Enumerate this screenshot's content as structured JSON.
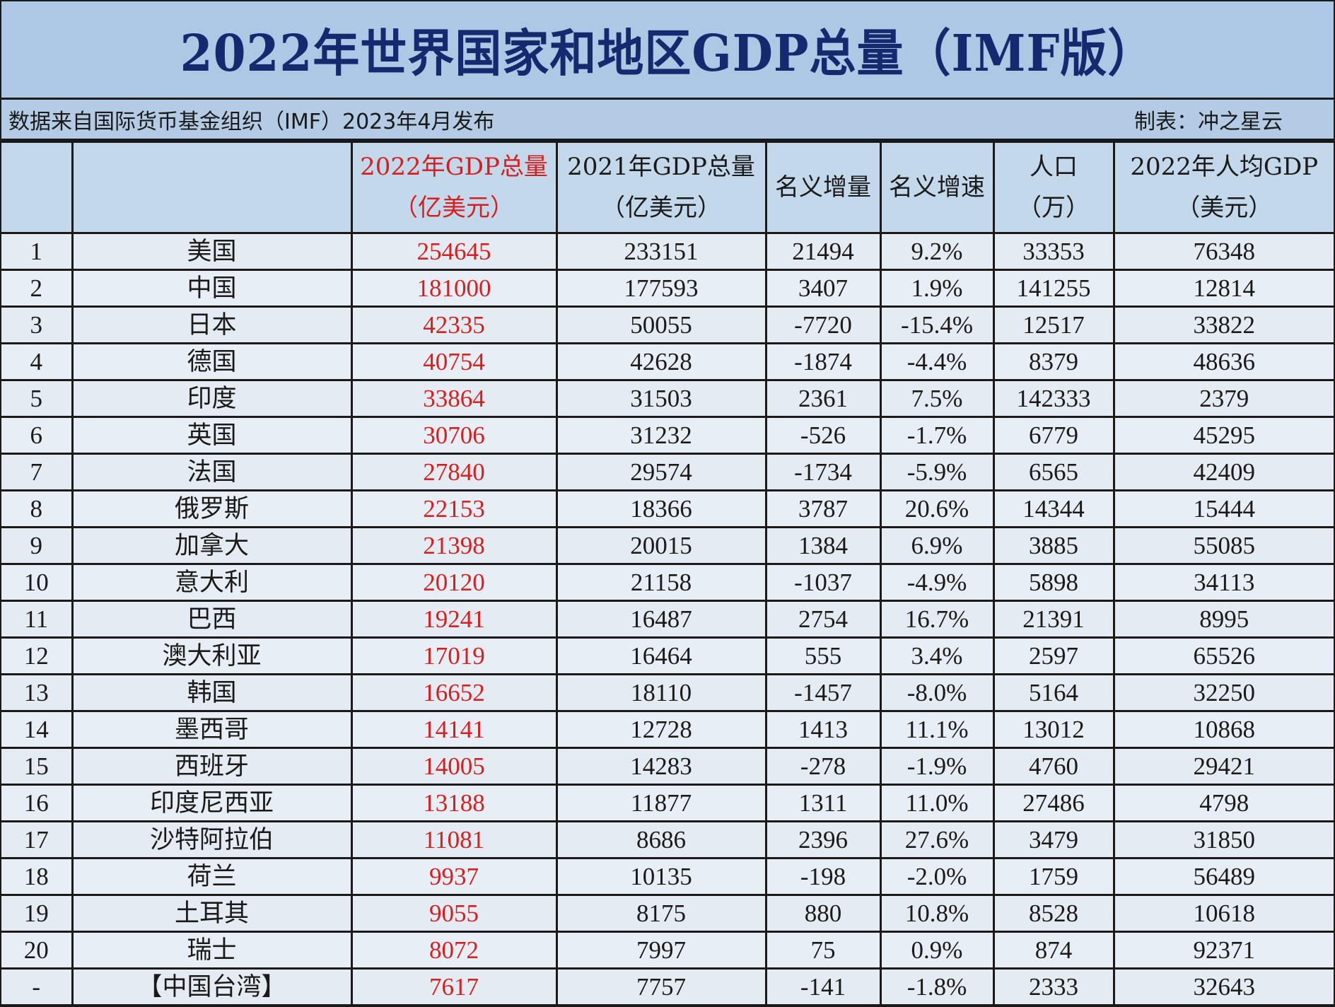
{
  "title": "2022年世界国家和地区GDP总量（IMF版）",
  "subtitle": {
    "source": "数据来自国际货币基金组织（IMF）2023年4月发布",
    "author": "制表：冲之星云"
  },
  "colors": {
    "title_text": "#152a6e",
    "title_bg": "#adc8e4",
    "header_bg": "#c4d8eb",
    "row_bg": "#e4ebf3",
    "highlight_red": "#d42020"
  },
  "headers": [
    {
      "line1": "",
      "line2": ""
    },
    {
      "line1": "",
      "line2": ""
    },
    {
      "line1": "2022年GDP总量",
      "line2": "（亿美元）"
    },
    {
      "line1": "2021年GDP总量",
      "line2": "（亿美元）"
    },
    {
      "line1": "名义增量",
      "line2": ""
    },
    {
      "line1": "名义增速",
      "line2": ""
    },
    {
      "line1": "人口",
      "line2": "（万）"
    },
    {
      "line1": "2022年人均GDP",
      "line2": "（美元）"
    }
  ],
  "rows": [
    {
      "rank": "1",
      "name": "美国",
      "gdp2022": "254645",
      "gdp2021": "233151",
      "increase": "21494",
      "growth": "9.2%",
      "population": "33353",
      "per_capita": "76348"
    },
    {
      "rank": "2",
      "name": "中国",
      "gdp2022": "181000",
      "gdp2021": "177593",
      "increase": "3407",
      "growth": "1.9%",
      "population": "141255",
      "per_capita": "12814"
    },
    {
      "rank": "3",
      "name": "日本",
      "gdp2022": "42335",
      "gdp2021": "50055",
      "increase": "-7720",
      "growth": "-15.4%",
      "population": "12517",
      "per_capita": "33822"
    },
    {
      "rank": "4",
      "name": "德国",
      "gdp2022": "40754",
      "gdp2021": "42628",
      "increase": "-1874",
      "growth": "-4.4%",
      "population": "8379",
      "per_capita": "48636"
    },
    {
      "rank": "5",
      "name": "印度",
      "gdp2022": "33864",
      "gdp2021": "31503",
      "increase": "2361",
      "growth": "7.5%",
      "population": "142333",
      "per_capita": "2379"
    },
    {
      "rank": "6",
      "name": "英国",
      "gdp2022": "30706",
      "gdp2021": "31232",
      "increase": "-526",
      "growth": "-1.7%",
      "population": "6779",
      "per_capita": "45295"
    },
    {
      "rank": "7",
      "name": "法国",
      "gdp2022": "27840",
      "gdp2021": "29574",
      "increase": "-1734",
      "growth": "-5.9%",
      "population": "6565",
      "per_capita": "42409"
    },
    {
      "rank": "8",
      "name": "俄罗斯",
      "gdp2022": "22153",
      "gdp2021": "18366",
      "increase": "3787",
      "growth": "20.6%",
      "population": "14344",
      "per_capita": "15444"
    },
    {
      "rank": "9",
      "name": "加拿大",
      "gdp2022": "21398",
      "gdp2021": "20015",
      "increase": "1384",
      "growth": "6.9%",
      "population": "3885",
      "per_capita": "55085"
    },
    {
      "rank": "10",
      "name": "意大利",
      "gdp2022": "20120",
      "gdp2021": "21158",
      "increase": "-1037",
      "growth": "-4.9%",
      "population": "5898",
      "per_capita": "34113"
    },
    {
      "rank": "11",
      "name": "巴西",
      "gdp2022": "19241",
      "gdp2021": "16487",
      "increase": "2754",
      "growth": "16.7%",
      "population": "21391",
      "per_capita": "8995"
    },
    {
      "rank": "12",
      "name": "澳大利亚",
      "gdp2022": "17019",
      "gdp2021": "16464",
      "increase": "555",
      "growth": "3.4%",
      "population": "2597",
      "per_capita": "65526"
    },
    {
      "rank": "13",
      "name": "韩国",
      "gdp2022": "16652",
      "gdp2021": "18110",
      "increase": "-1457",
      "growth": "-8.0%",
      "population": "5164",
      "per_capita": "32250"
    },
    {
      "rank": "14",
      "name": "墨西哥",
      "gdp2022": "14141",
      "gdp2021": "12728",
      "increase": "1413",
      "growth": "11.1%",
      "population": "13012",
      "per_capita": "10868"
    },
    {
      "rank": "15",
      "name": "西班牙",
      "gdp2022": "14005",
      "gdp2021": "14283",
      "increase": "-278",
      "growth": "-1.9%",
      "population": "4760",
      "per_capita": "29421"
    },
    {
      "rank": "16",
      "name": "印度尼西亚",
      "gdp2022": "13188",
      "gdp2021": "11877",
      "increase": "1311",
      "growth": "11.0%",
      "population": "27486",
      "per_capita": "4798"
    },
    {
      "rank": "17",
      "name": "沙特阿拉伯",
      "gdp2022": "11081",
      "gdp2021": "8686",
      "increase": "2396",
      "growth": "27.6%",
      "population": "3479",
      "per_capita": "31850"
    },
    {
      "rank": "18",
      "name": "荷兰",
      "gdp2022": "9937",
      "gdp2021": "10135",
      "increase": "-198",
      "growth": "-2.0%",
      "population": "1759",
      "per_capita": "56489"
    },
    {
      "rank": "19",
      "name": "土耳其",
      "gdp2022": "9055",
      "gdp2021": "8175",
      "increase": "880",
      "growth": "10.8%",
      "population": "8528",
      "per_capita": "10618"
    },
    {
      "rank": "20",
      "name": "瑞士",
      "gdp2022": "8072",
      "gdp2021": "7997",
      "increase": "75",
      "growth": "0.9%",
      "population": "874",
      "per_capita": "92371"
    },
    {
      "rank": "-",
      "name": "【中国台湾】",
      "gdp2022": "7617",
      "gdp2021": "7757",
      "increase": "-141",
      "growth": "-1.8%",
      "population": "2333",
      "per_capita": "32643"
    }
  ]
}
